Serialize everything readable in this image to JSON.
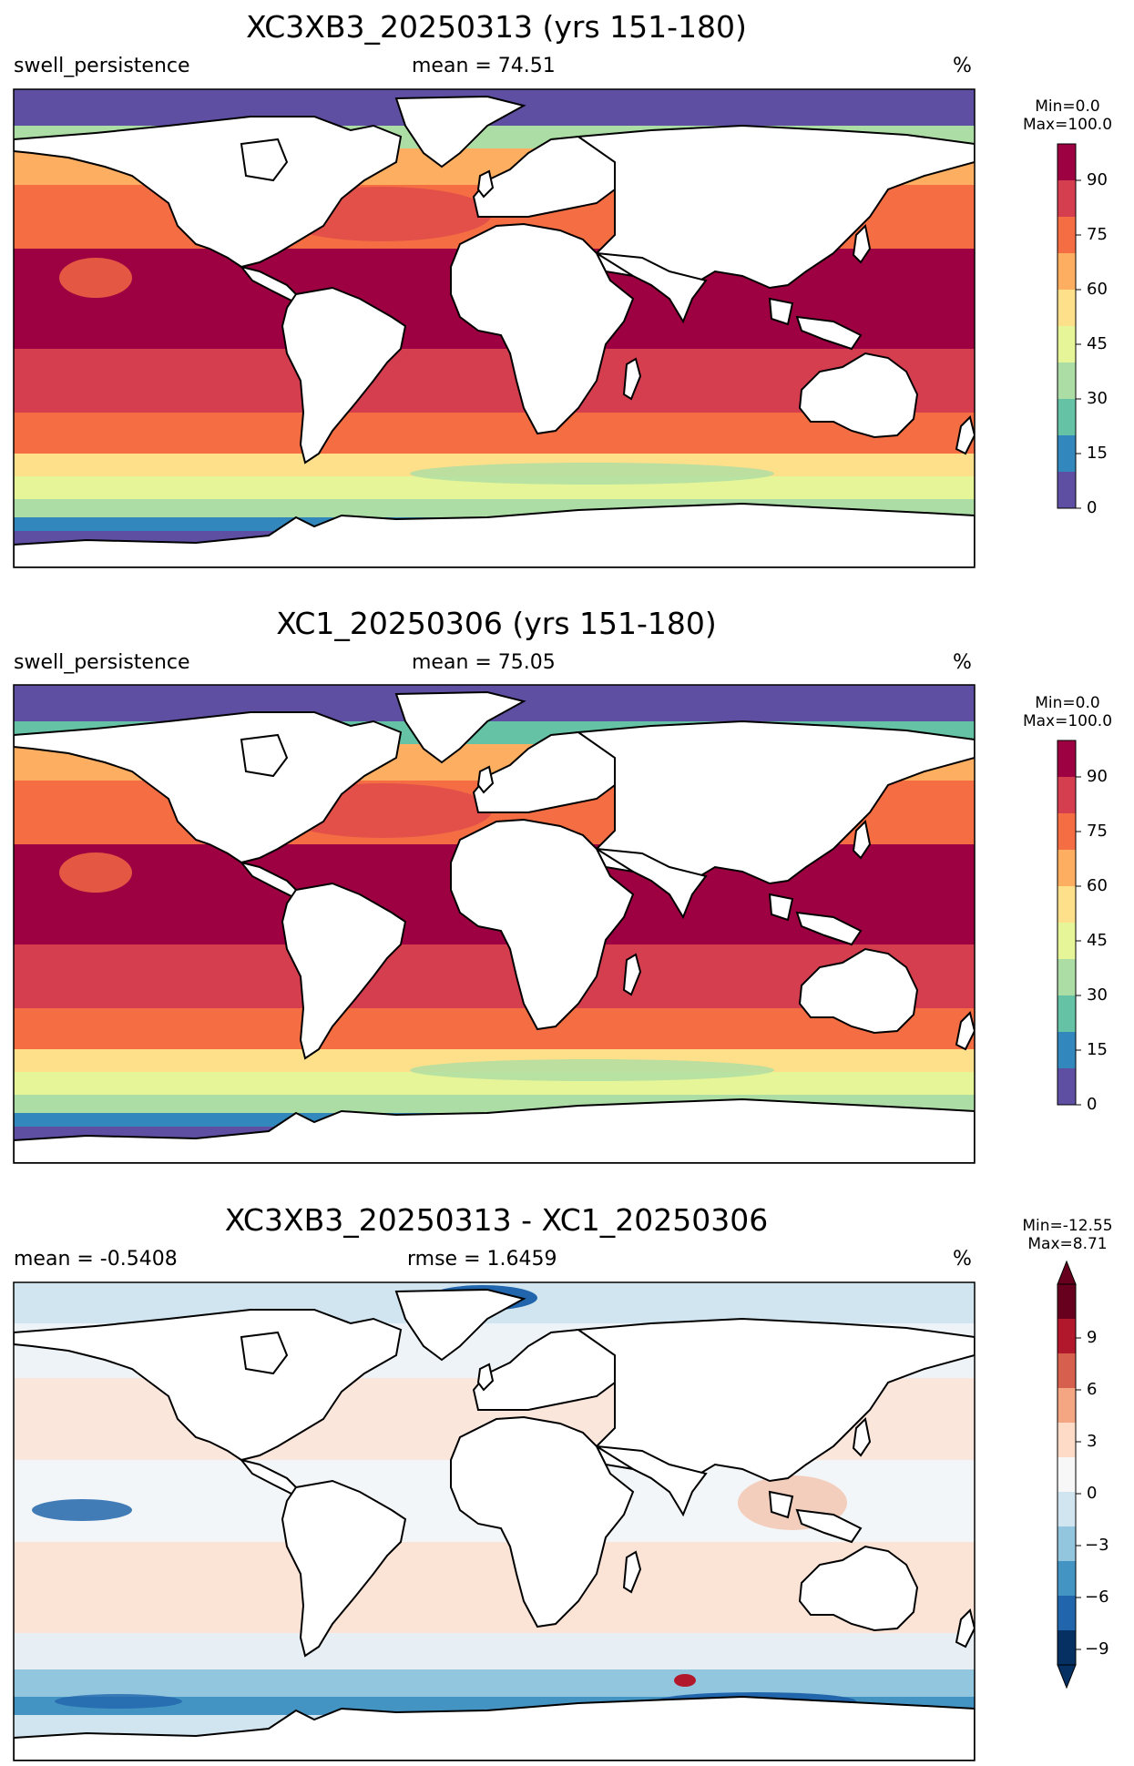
{
  "panels": [
    {
      "title": "XC3XB3_20250313 (yrs 151-180)",
      "left_label": "swell_persistence",
      "center_label": "mean = 74.51",
      "unit": "%",
      "colorbar_title_line1": "Min=0.0",
      "colorbar_title_line2": "Max=100.0",
      "colorbar_ticks": [
        "0",
        "15",
        "30",
        "45",
        "60",
        "75",
        "90"
      ],
      "colormap": "Spectral_r",
      "range": [
        0,
        100
      ]
    },
    {
      "title": "XC1_20250306 (yrs 151-180)",
      "left_label": "swell_persistence",
      "center_label": "mean = 75.05",
      "unit": "%",
      "colorbar_title_line1": "Min=0.0",
      "colorbar_title_line2": "Max=100.0",
      "colorbar_ticks": [
        "0",
        "15",
        "30",
        "45",
        "60",
        "75",
        "90"
      ],
      "colormap": "Spectral_r",
      "range": [
        0,
        100
      ]
    },
    {
      "title": "XC3XB3_20250313 - XC1_20250306",
      "left_label": "mean = -0.5408",
      "center_label": "rmse = 1.6459",
      "unit": "%",
      "colorbar_title_line1": "Min=-12.55",
      "colorbar_title_line2": "Max=8.71",
      "colorbar_ticks": [
        "−9",
        "−6",
        "−3",
        "0",
        "3",
        "6",
        "9"
      ],
      "colormap": "RdBu_r",
      "range": [
        -10,
        10
      ]
    }
  ],
  "colors": {
    "spectral": [
      "#5e4fa2",
      "#3288bd",
      "#66c2a5",
      "#abdda4",
      "#e6f598",
      "#ffffbf",
      "#fee08b",
      "#fdae61",
      "#f46d43",
      "#d53e4f",
      "#9e0142"
    ],
    "rdbu": [
      "#053061",
      "#2166ac",
      "#4393c3",
      "#92c5de",
      "#d1e5f0",
      "#f7f7f7",
      "#fddbc7",
      "#f4a582",
      "#d6604d",
      "#b2182b",
      "#67001f"
    ]
  }
}
